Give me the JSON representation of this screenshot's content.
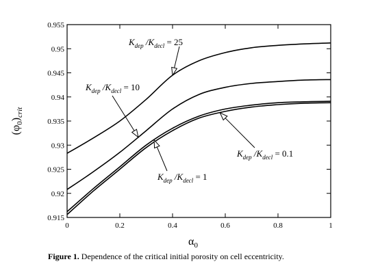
{
  "caption": {
    "label": "Figure 1.",
    "text": "Dependence of the critical initial porosity on cell eccentricity."
  },
  "chart_data": {
    "type": "line",
    "xlabel": "α0",
    "ylabel": "(φ0)crit",
    "xlim": [
      0,
      1
    ],
    "ylim": [
      0.915,
      0.955
    ],
    "x_ticks": [
      "0",
      "0.2",
      "0.4",
      "0.6",
      "0.8",
      "1"
    ],
    "y_ticks": [
      "0.915",
      "0.92",
      "0.925",
      "0.93",
      "0.935",
      "0.94",
      "0.945",
      "0.95",
      "0.955"
    ],
    "grid": false,
    "legend": "none",
    "x": [
      0,
      0.1,
      0.2,
      0.3,
      0.4,
      0.5,
      0.6,
      0.7,
      0.8,
      0.9,
      1.0
    ],
    "series": [
      {
        "name": "Kdep/Kdecl = 25",
        "values": [
          0.9283,
          0.9315,
          0.935,
          0.9395,
          0.9445,
          0.9475,
          0.9492,
          0.9502,
          0.9507,
          0.951,
          0.9512
        ]
      },
      {
        "name": "Kdep/Kdecl = 10",
        "values": [
          0.9208,
          0.9245,
          0.9285,
          0.933,
          0.9375,
          0.9405,
          0.942,
          0.9428,
          0.9432,
          0.9435,
          0.9436
        ]
      },
      {
        "name": "Kdep/Kdecl = 1",
        "values": [
          0.9162,
          0.921,
          0.9255,
          0.93,
          0.9335,
          0.936,
          0.9375,
          0.9383,
          0.9388,
          0.939,
          0.9391
        ]
      },
      {
        "name": "Kdep/Kdecl = 0.1",
        "values": [
          0.9156,
          0.9205,
          0.925,
          0.9295,
          0.933,
          0.9356,
          0.937,
          0.9379,
          0.9384,
          0.9387,
          0.9388
        ]
      }
    ],
    "annotations": [
      {
        "series": 0,
        "text": "Kdep/Kdecl = 25",
        "sub1": "dep",
        "sub2": "decl",
        "value": "25"
      },
      {
        "series": 1,
        "text": "Kdep/Kdecl = 10",
        "sub1": "dep",
        "sub2": "decl",
        "value": "10"
      },
      {
        "series": 2,
        "text": "Kdep/Kdecl = 1",
        "sub1": "dep",
        "sub2": "decl",
        "value": "1"
      },
      {
        "series": 3,
        "text": "Kdep/Kdecl = 0.1",
        "sub1": "dep",
        "sub2": "decl",
        "value": "0.1"
      }
    ]
  }
}
